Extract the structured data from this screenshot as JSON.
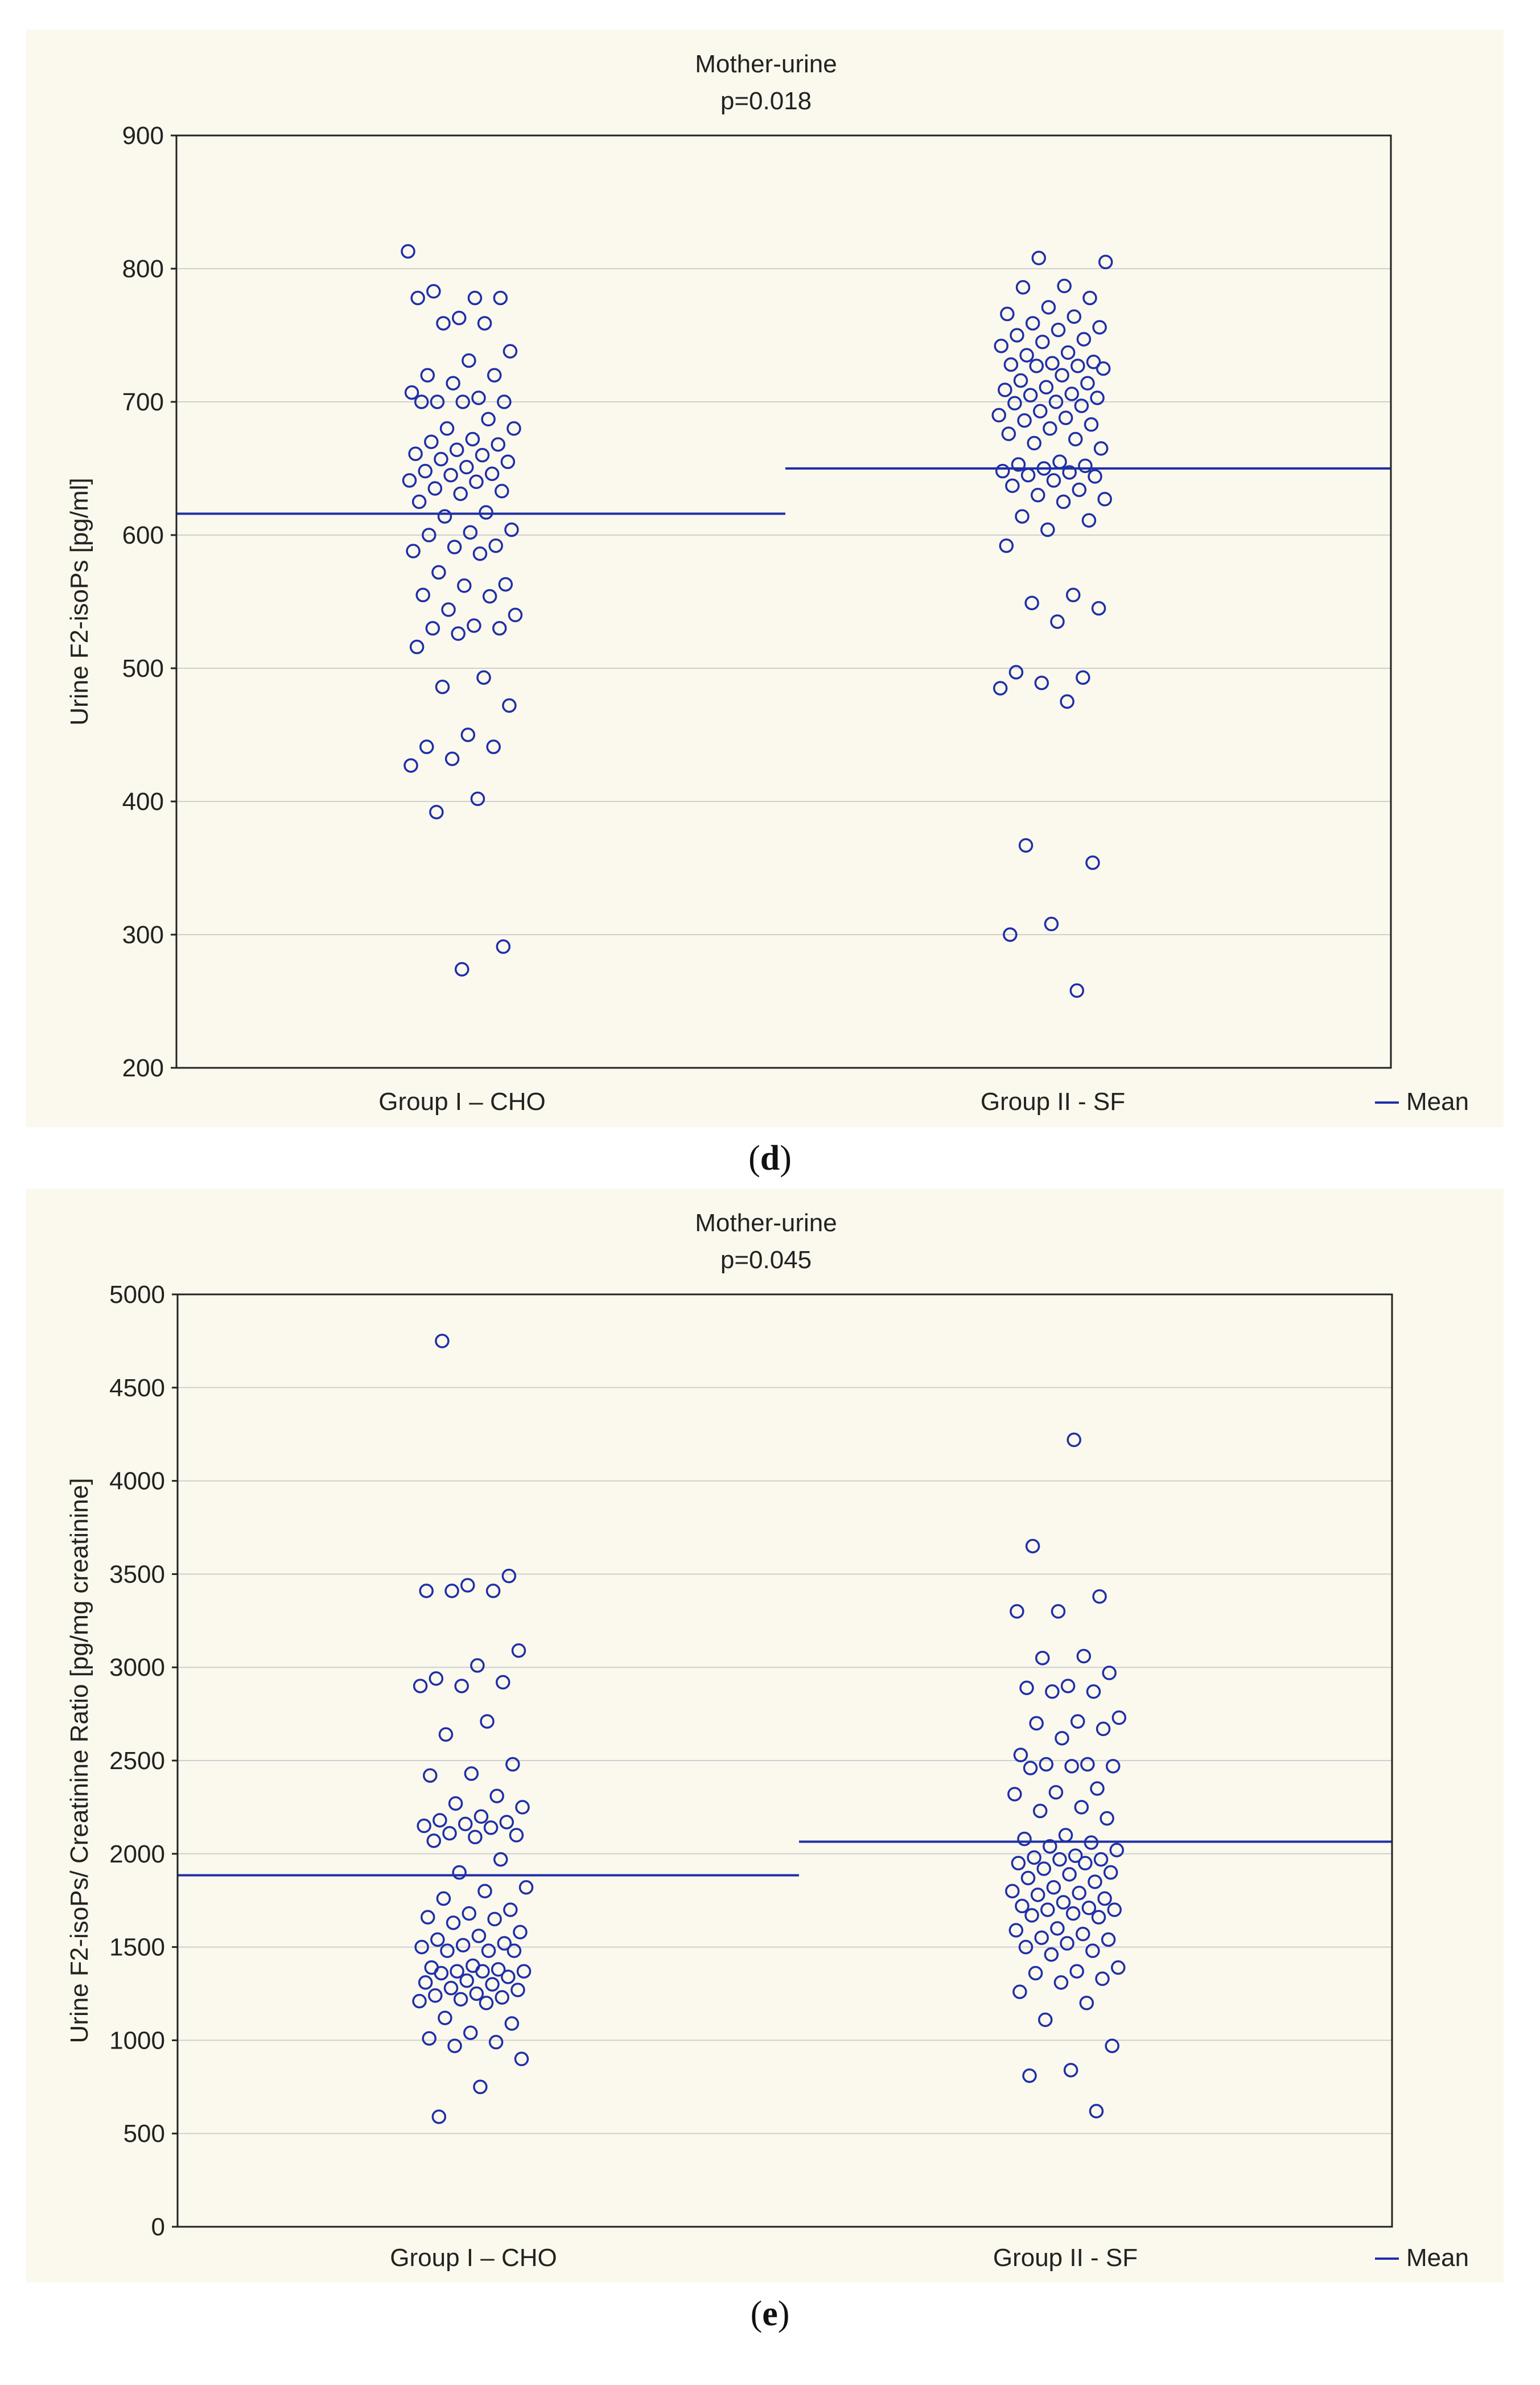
{
  "chart_data": [
    {
      "panel_label": "d",
      "type": "scatter",
      "title": "Mother-urine",
      "subtitle": "p=0.018",
      "ylabel": "Urine F2-isoPs [pg/ml]",
      "xlabel": "",
      "categories": [
        "Group I – CHO",
        "Group II - SF"
      ],
      "ylim": [
        200,
        900
      ],
      "yticks": [
        200,
        300,
        400,
        500,
        600,
        700,
        800,
        900
      ],
      "grid": true,
      "legend": {
        "label": "Mean",
        "placement": "bottom-right"
      },
      "series": [
        {
          "name": "Group I – CHO",
          "mean": 616,
          "values": [
            813,
            778,
            783,
            778,
            763,
            778,
            759,
            759,
            738,
            731,
            720,
            720,
            714,
            707,
            703,
            700,
            700,
            700,
            700,
            687,
            680,
            680,
            672,
            670,
            668,
            664,
            661,
            660,
            657,
            655,
            651,
            648,
            646,
            645,
            641,
            640,
            635,
            633,
            631,
            625,
            617,
            614,
            604,
            602,
            600,
            592,
            591,
            588,
            586,
            572,
            563,
            562,
            555,
            554,
            544,
            540,
            532,
            530,
            530,
            526,
            516,
            493,
            486,
            472,
            450,
            441,
            441,
            432,
            427,
            402,
            392,
            291,
            274
          ]
        },
        {
          "name": "Group II - SF",
          "mean": 650,
          "values": [
            808,
            805,
            787,
            786,
            778,
            771,
            766,
            764,
            759,
            756,
            754,
            750,
            747,
            745,
            742,
            737,
            735,
            730,
            729,
            728,
            727,
            727,
            725,
            720,
            716,
            714,
            711,
            709,
            706,
            705,
            703,
            700,
            699,
            697,
            693,
            690,
            688,
            686,
            683,
            680,
            676,
            672,
            669,
            665,
            655,
            653,
            652,
            650,
            648,
            647,
            645,
            644,
            641,
            637,
            634,
            630,
            627,
            625,
            614,
            611,
            604,
            592,
            555,
            549,
            545,
            535,
            497,
            493,
            489,
            485,
            475,
            367,
            354,
            308,
            300,
            258
          ]
        }
      ]
    },
    {
      "panel_label": "e",
      "type": "scatter",
      "title": "Mother-urine",
      "subtitle": "p=0.045",
      "ylabel": "Urine F2-isoPs/ Creatinine Ratio [pg/mg creatinine]",
      "xlabel": "",
      "categories": [
        "Group I – CHO",
        "Group II - SF"
      ],
      "ylim": [
        0,
        5000
      ],
      "yticks": [
        0,
        500,
        1000,
        1500,
        2000,
        2500,
        3000,
        3500,
        4000,
        4500,
        5000
      ],
      "grid": true,
      "legend": {
        "label": "Mean",
        "placement": "bottom-right"
      },
      "series": [
        {
          "name": "Group I – CHO",
          "mean": 1885,
          "values": [
            4750,
            3490,
            3440,
            3410,
            3410,
            3410,
            3090,
            3010,
            2940,
            2920,
            2900,
            2900,
            2710,
            2640,
            2480,
            2430,
            2420,
            2310,
            2270,
            2250,
            2200,
            2180,
            2170,
            2160,
            2150,
            2140,
            2110,
            2100,
            2090,
            2070,
            1970,
            1900,
            1820,
            1800,
            1760,
            1700,
            1680,
            1660,
            1650,
            1630,
            1580,
            1560,
            1540,
            1520,
            1510,
            1500,
            1480,
            1480,
            1480,
            1400,
            1390,
            1380,
            1370,
            1370,
            1370,
            1360,
            1340,
            1320,
            1310,
            1300,
            1280,
            1270,
            1250,
            1240,
            1230,
            1220,
            1210,
            1200,
            1120,
            1090,
            1040,
            1010,
            990,
            970,
            900,
            750,
            590
          ]
        },
        {
          "name": "Group II - SF",
          "mean": 2065,
          "values": [
            4220,
            3650,
            3380,
            3300,
            3300,
            3060,
            3050,
            2970,
            2900,
            2890,
            2870,
            2870,
            2730,
            2710,
            2700,
            2670,
            2620,
            2530,
            2480,
            2480,
            2470,
            2470,
            2460,
            2350,
            2330,
            2320,
            2250,
            2230,
            2190,
            2100,
            2080,
            2060,
            2040,
            2020,
            1990,
            1980,
            1970,
            1970,
            1950,
            1950,
            1920,
            1900,
            1890,
            1870,
            1850,
            1820,
            1800,
            1790,
            1780,
            1760,
            1740,
            1720,
            1710,
            1700,
            1700,
            1680,
            1670,
            1660,
            1600,
            1590,
            1570,
            1550,
            1540,
            1520,
            1500,
            1480,
            1460,
            1390,
            1370,
            1360,
            1330,
            1310,
            1260,
            1200,
            1110,
            970,
            840,
            810,
            620
          ]
        }
      ]
    }
  ],
  "captions": [
    {
      "open": "(",
      "letter": "d",
      "close": ")"
    },
    {
      "open": "(",
      "letter": "e",
      "close": ")"
    }
  ]
}
